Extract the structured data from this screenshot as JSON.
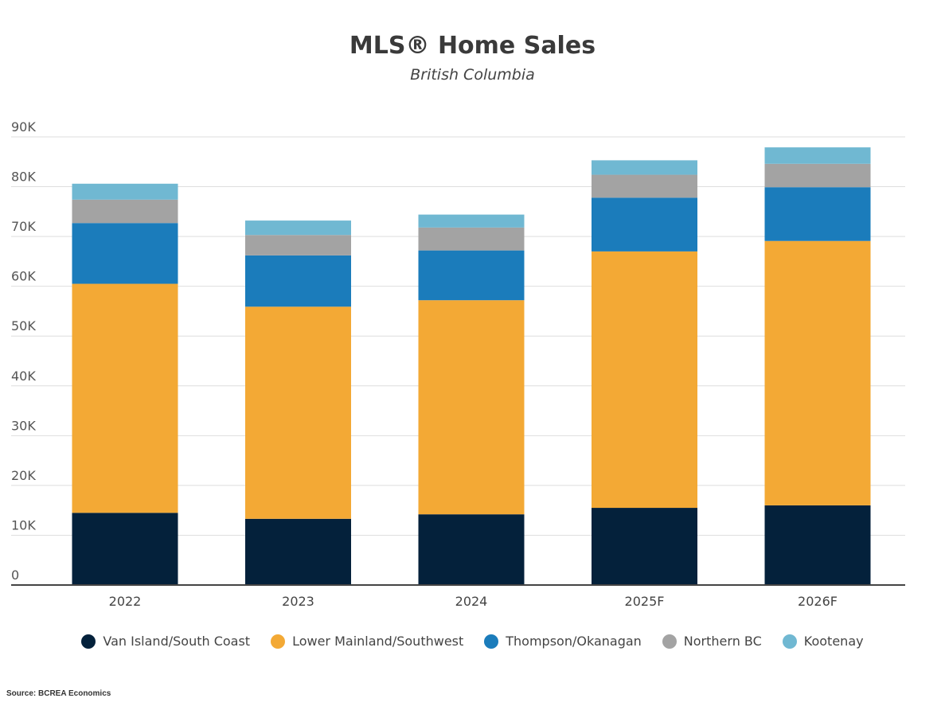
{
  "chart_data": {
    "type": "bar",
    "stacked": true,
    "title": "MLS® Home Sales",
    "subtitle": "British Columbia",
    "categories": [
      "2022",
      "2023",
      "2024",
      "2025F",
      "2026F"
    ],
    "y_ticks": [
      "0",
      "10K",
      "20K",
      "30K",
      "40K",
      "50K",
      "60K",
      "70K",
      "80K",
      "90K"
    ],
    "ylim": [
      0,
      90000
    ],
    "grid": true,
    "legend_position": "bottom",
    "series": [
      {
        "name": "Van Island/South Coast",
        "color": "#04213b",
        "values": [
          14500,
          13300,
          14200,
          15500,
          16000
        ]
      },
      {
        "name": "Lower Mainland/Southwest",
        "color": "#f3a935",
        "values": [
          46000,
          42600,
          43000,
          51500,
          53100
        ]
      },
      {
        "name": "Thompson/Okanagan",
        "color": "#1b7cbb",
        "values": [
          12200,
          10300,
          10000,
          10800,
          10800
        ]
      },
      {
        "name": "Northern BC",
        "color": "#a3a3a3",
        "values": [
          4700,
          4100,
          4600,
          4600,
          4700
        ]
      },
      {
        "name": "Kootenay",
        "color": "#70b8d2",
        "values": [
          3200,
          2900,
          2600,
          2900,
          3300
        ]
      }
    ]
  },
  "source": "Source: BCREA Economics"
}
